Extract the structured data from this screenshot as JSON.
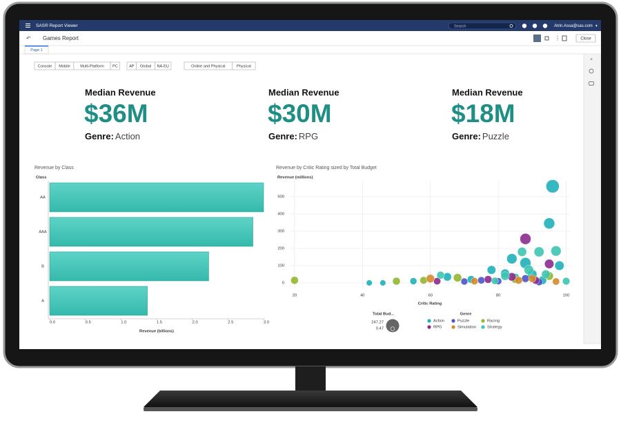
{
  "app": {
    "title": "SAS® Report Viewer",
    "search_placeholder": "Search",
    "user": "Atrin.Assa@sas.com"
  },
  "toolbar": {
    "report_title": "Games Report",
    "close": "Close",
    "tab": "Page 1"
  },
  "filters": [
    [
      "Console",
      "Mobile",
      "Multi-Platform",
      "PC"
    ],
    [
      "AP",
      "Global",
      "NA-EU"
    ],
    [
      "Online and Physical",
      "Physical"
    ]
  ],
  "kpis": [
    {
      "label": "Median Revenue",
      "value": "$36M",
      "genre_label": "Genre:",
      "genre": "Action"
    },
    {
      "label": "Median Revenue",
      "value": "$30M",
      "genre_label": "Genre:",
      "genre": "RPG"
    },
    {
      "label": "Median Revenue",
      "value": "$18M",
      "genre_label": "Genre:",
      "genre": "Puzzle"
    }
  ],
  "chart_data": [
    {
      "type": "bar",
      "orientation": "horizontal",
      "title": "Revenue by Class",
      "category_axis_title": "Class",
      "x_axis_title": "Revenue (billions)",
      "categories": [
        "AA",
        "AAA",
        "B",
        "A"
      ],
      "values": [
        3.0,
        2.85,
        2.23,
        1.37
      ],
      "color": "#3cc4b7",
      "xlim": [
        0,
        3.0
      ],
      "xticks": [
        {
          "value": 0,
          "label": "0.0"
        },
        {
          "value": 0.5,
          "label": "0.5"
        },
        {
          "value": 1,
          "label": "1.0"
        },
        {
          "value": 1.5,
          "label": "1.5"
        },
        {
          "value": 2,
          "label": "2.0"
        },
        {
          "value": 2.5,
          "label": "2.5"
        },
        {
          "value": 3,
          "label": "3.0"
        }
      ]
    },
    {
      "type": "scatter",
      "title": "Revenue by Critic Rating sized by Total Budget",
      "y_axis_title": "Revenue (millions)",
      "x_axis_title": "Critic Rating",
      "xlim": [
        18.6,
        101.1
      ],
      "ylim": [
        -32,
        592
      ],
      "xticks": [
        20,
        40,
        60,
        80,
        100
      ],
      "yticks": [
        0,
        100,
        200,
        300,
        400,
        500
      ],
      "grid": true,
      "size_legend": {
        "title": "Total Bud...",
        "max": 247.27,
        "min": 0.47
      },
      "legend_title": "Genre",
      "series": [
        {
          "name": "Action",
          "color": "#1fb0b8",
          "x": [
            96,
            95,
            88,
            84,
            78,
            90,
            85,
            98,
            72,
            65,
            93,
            55,
            42,
            46,
            82
          ],
          "values": [
            560,
            345,
            115,
            140,
            75,
            50,
            30,
            100,
            20,
            35,
            15,
            10,
            0,
            0,
            55
          ],
          "sizes": [
            247,
            150,
            150,
            120,
            70,
            90,
            60,
            90,
            45,
            60,
            60,
            30,
            15,
            15,
            70
          ]
        },
        {
          "name": "Puzzle",
          "color": "#4b55c8",
          "x": [
            75,
            80,
            88,
            92,
            70
          ],
          "values": [
            15,
            10,
            25,
            5,
            8
          ],
          "sizes": [
            35,
            30,
            45,
            35,
            30
          ]
        },
        {
          "name": "Racing",
          "color": "#94b72f",
          "x": [
            20,
            50,
            58,
            68,
            85,
            95
          ],
          "values": [
            15,
            10,
            15,
            30,
            20,
            40
          ],
          "sizes": [
            45,
            45,
            40,
            60,
            45,
            60
          ]
        },
        {
          "name": "RPG",
          "color": "#8c2b8e",
          "x": [
            88,
            95,
            77,
            62,
            84,
            91
          ],
          "values": [
            255,
            110,
            20,
            10,
            35,
            15
          ],
          "sizes": [
            150,
            90,
            45,
            35,
            60,
            45
          ]
        },
        {
          "name": "Simulation",
          "color": "#d58b2b",
          "x": [
            60,
            73,
            86,
            90,
            97
          ],
          "values": [
            25,
            10,
            15,
            25,
            8
          ],
          "sizes": [
            60,
            35,
            40,
            45,
            35
          ]
        },
        {
          "name": "Strategy",
          "color": "#3ec4b1",
          "x": [
            97,
            92,
            87,
            63,
            82,
            89,
            94,
            79,
            100
          ],
          "values": [
            185,
            180,
            180,
            45,
            40,
            75,
            50,
            12,
            10
          ],
          "sizes": [
            120,
            110,
            85,
            45,
            70,
            95,
            70,
            35,
            40
          ]
        }
      ]
    }
  ]
}
